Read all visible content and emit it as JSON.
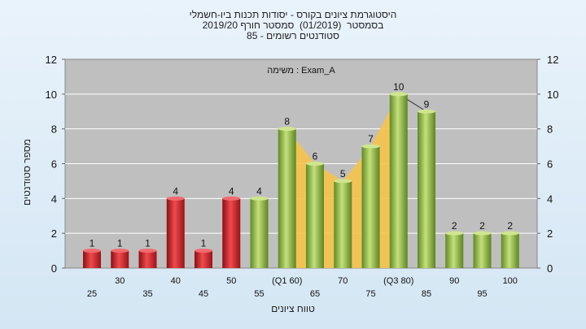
{
  "chart_data": {
    "type": "bar",
    "title_lines": [
      "היסטוגרמת ציונים בקורס - יסודות תכנות ביו-חשמלי",
      "בסמסטר  (01/2019)  סמסטר חורף 2019/20",
      "סטודנטים רשומים - 85"
    ],
    "annotation": "משימה : Exam_A",
    "ylabel": "מספר סטודנטים",
    "xlabel": "טווח ציונים",
    "ylim": [
      0,
      12
    ],
    "yticks": [
      0,
      2,
      4,
      6,
      8,
      10,
      12
    ],
    "grid": true,
    "categories": [
      "25",
      "30",
      "35",
      "40",
      "45",
      "50",
      "55",
      "(Q1 60)",
      "65",
      "70",
      "75",
      "(Q3 80)",
      "85",
      "90",
      "95",
      "100"
    ],
    "values": [
      1,
      1,
      1,
      4,
      1,
      4,
      4,
      8,
      6,
      5,
      7,
      10,
      9,
      2,
      2,
      2
    ],
    "data_labels": [
      "1",
      "1",
      "1",
      "4",
      "1",
      "4",
      "4",
      "8",
      "6",
      "5",
      "7",
      "10",
      "9",
      "2",
      "2",
      "2"
    ],
    "bar_colors": [
      "red",
      "red",
      "red",
      "red",
      "red",
      "red",
      "green",
      "green",
      "green",
      "green",
      "green",
      "green",
      "green",
      "green",
      "green",
      "green"
    ],
    "quartile_band": {
      "from_index": 7,
      "to_index": 11,
      "color": "#f6c34a"
    },
    "colors": {
      "plot_bg": "#bfbfbf",
      "red_bar": "#e0262b",
      "green_bar": "#9dc44a",
      "grid": "#ffffff",
      "band": "#f6c34a"
    }
  }
}
